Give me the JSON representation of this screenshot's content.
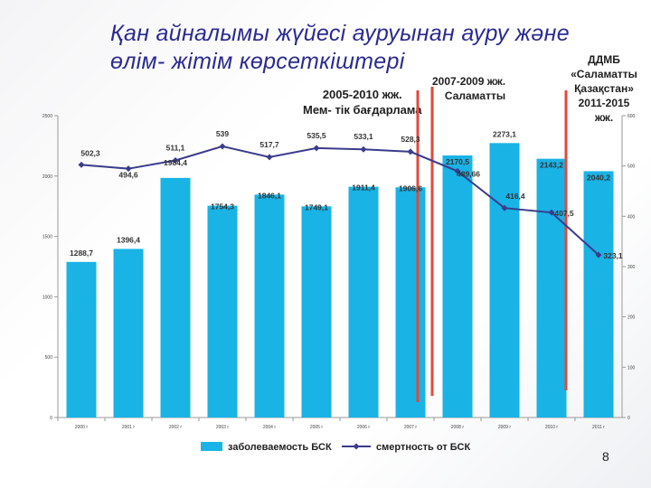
{
  "title": "Қан айналымы жүйесі ауруынан ауру және өлім- жітім көрсеткіштері",
  "program_2005_2010": {
    "years": "2005-2010 жж.",
    "name": "Мем- тік бағдарлама"
  },
  "program_2007_2009": {
    "years": "2007-2009 жж.",
    "name": "Саламатты"
  },
  "program_2011_2015": {
    "org": "ДДМБ",
    "line1": "«Саламатты",
    "line2": "Қазақстан»",
    "years": "2011-2015",
    "suffix": "жж."
  },
  "page_number": "8",
  "colors": {
    "bars": "#19b3e6",
    "line": "#3b3b8c",
    "divider": "#e2483b",
    "title": "#2b2b8f"
  },
  "chart_data": {
    "type": "bar",
    "categories": [
      "2000 г",
      "2001 г",
      "2002 г",
      "2003 г",
      "2004 г",
      "2005 г",
      "2006 г",
      "2007 г",
      "2008 г",
      "2009 г",
      "2010 г",
      "2011 г"
    ],
    "series": [
      {
        "name": "заболеваемость БСК",
        "type": "bar",
        "axis": "left",
        "values": [
          1288.7,
          1396.4,
          1984.4,
          1754.3,
          1846.1,
          1749.1,
          1911.4,
          1906.6,
          2170.5,
          2273.1,
          2143.2,
          2040.2
        ],
        "labels": [
          "1288,7",
          "1396,4",
          "1984,4",
          "1754,3",
          "1846,1",
          "1749,1",
          "1911,4",
          "1906,6",
          "2170,5",
          "2273,1",
          "2143,2",
          "2040,2"
        ]
      },
      {
        "name": "смертность от БСК",
        "type": "line",
        "axis": "right",
        "values": [
          502.3,
          494.6,
          511.1,
          539,
          517.7,
          535.5,
          533.1,
          528.3,
          489.66,
          416.4,
          407.5,
          323.1
        ],
        "labels": [
          "502,3",
          "494,6",
          "511,1",
          "539",
          "517,7",
          "535,5",
          "533,1",
          "528,3",
          "489,66",
          "416,4",
          "407,5",
          "323,1"
        ]
      }
    ],
    "y_left": {
      "ticks": [
        "0",
        "500",
        "1000",
        "1500",
        "2000",
        "2500"
      ],
      "ylim": [
        0,
        2500
      ]
    },
    "y_right": {
      "ticks": [
        "0",
        "100",
        "200",
        "300",
        "400",
        "500",
        "600"
      ],
      "ylim": [
        0,
        600
      ]
    },
    "grid": false,
    "legend_position": "bottom"
  }
}
